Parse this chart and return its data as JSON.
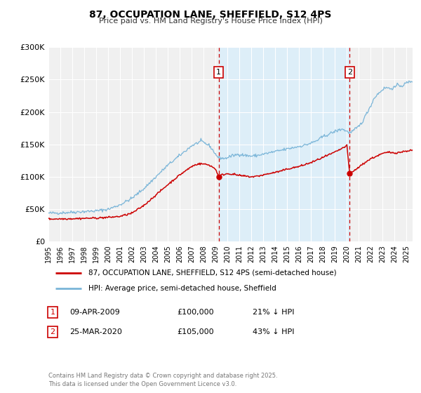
{
  "title": "87, OCCUPATION LANE, SHEFFIELD, S12 4PS",
  "subtitle": "Price paid vs. HM Land Registry's House Price Index (HPI)",
  "legend_line1": "87, OCCUPATION LANE, SHEFFIELD, S12 4PS (semi-detached house)",
  "legend_line2": "HPI: Average price, semi-detached house, Sheffield",
  "annotation1_label": "1",
  "annotation1_date": "09-APR-2009",
  "annotation1_price": "£100,000",
  "annotation1_hpi": "21% ↓ HPI",
  "annotation2_label": "2",
  "annotation2_date": "25-MAR-2020",
  "annotation2_price": "£105,000",
  "annotation2_hpi": "43% ↓ HPI",
  "footer": "Contains HM Land Registry data © Crown copyright and database right 2025.\nThis data is licensed under the Open Government Licence v3.0.",
  "hpi_color": "#7ab5d8",
  "price_color": "#cc0000",
  "marker_color": "#cc0000",
  "vline_color": "#cc0000",
  "shade_color": "#ddeef8",
  "plot_bg_color": "#f0f0f0",
  "ylim": [
    0,
    300000
  ],
  "yticks": [
    0,
    50000,
    100000,
    150000,
    200000,
    250000,
    300000
  ],
  "ytick_labels": [
    "£0",
    "£50K",
    "£100K",
    "£150K",
    "£200K",
    "£250K",
    "£300K"
  ],
  "vline1_year": 2009.27,
  "vline2_year": 2020.23,
  "point1_year": 2009.27,
  "point1_value": 100000,
  "point2_year": 2020.23,
  "point2_value": 105000
}
